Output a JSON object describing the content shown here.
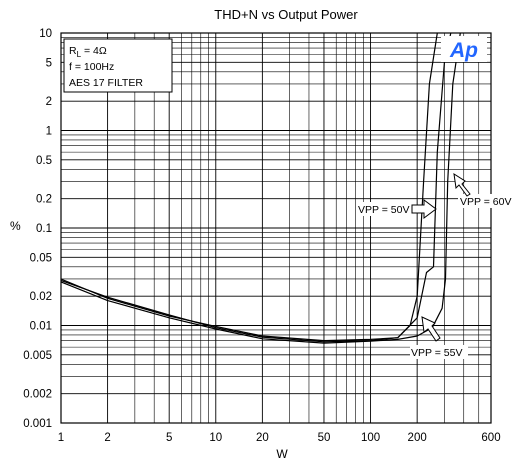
{
  "chart_data": {
    "type": "line",
    "title": "THD+N vs Output Power",
    "xlabel": "W",
    "ylabel": "%",
    "x_scale": "log",
    "y_scale": "log",
    "xlim": [
      1,
      600
    ],
    "ylim": [
      0.001,
      10
    ],
    "grid": true,
    "x_ticks": [
      1,
      2,
      5,
      10,
      20,
      50,
      100,
      200,
      600
    ],
    "x_tick_labels": [
      "1",
      "2",
      "5",
      "10",
      "20",
      "50",
      "100",
      "200",
      "600"
    ],
    "y_ticks": [
      10,
      5,
      2,
      1,
      0.5,
      0.2,
      0.1,
      0.05,
      0.02,
      0.01,
      0.005,
      0.002,
      0.001
    ],
    "y_tick_labels": [
      "10",
      "5",
      "2",
      "1",
      "0.5",
      "0.2",
      "0.1",
      "0.05",
      "0.02",
      "0.01",
      "0.005",
      "0.002",
      "0.001"
    ],
    "conditions": [
      "R",
      "L",
      " = 4Ω",
      "f  = 100Hz",
      "AES 17 FILTER"
    ],
    "logo_text": "Ap",
    "series": [
      {
        "name": "VPP = 50V",
        "points": [
          [
            1,
            0.03
          ],
          [
            2,
            0.019
          ],
          [
            5,
            0.0125
          ],
          [
            10,
            0.0098
          ],
          [
            20,
            0.0078
          ],
          [
            50,
            0.007
          ],
          [
            100,
            0.0072
          ],
          [
            150,
            0.0075
          ],
          [
            180,
            0.01
          ],
          [
            200,
            0.02
          ],
          [
            220,
            0.3
          ],
          [
            240,
            3
          ],
          [
            270,
            10
          ]
        ]
      },
      {
        "name": "VPP = 55V",
        "points": [
          [
            1,
            0.029
          ],
          [
            2,
            0.0195
          ],
          [
            5,
            0.0128
          ],
          [
            10,
            0.0095
          ],
          [
            20,
            0.0076
          ],
          [
            50,
            0.0068
          ],
          [
            100,
            0.007
          ],
          [
            150,
            0.0075
          ],
          [
            200,
            0.012
          ],
          [
            230,
            0.035
          ],
          [
            255,
            0.04
          ],
          [
            270,
            0.6
          ],
          [
            300,
            5
          ],
          [
            330,
            10
          ]
        ]
      },
      {
        "name": "VPP = 60V",
        "points": [
          [
            1,
            0.028
          ],
          [
            2,
            0.018
          ],
          [
            5,
            0.012
          ],
          [
            10,
            0.0092
          ],
          [
            20,
            0.0073
          ],
          [
            50,
            0.0066
          ],
          [
            100,
            0.0069
          ],
          [
            150,
            0.0072
          ],
          [
            200,
            0.0078
          ],
          [
            250,
            0.0095
          ],
          [
            290,
            0.015
          ],
          [
            305,
            0.03
          ],
          [
            315,
            0.3
          ],
          [
            340,
            3
          ],
          [
            380,
            10
          ]
        ]
      }
    ],
    "annotations": [
      {
        "text": "VPP = 50V",
        "arrow_to": [
          175,
          0.12
        ]
      },
      {
        "text": "VPP = 55V",
        "arrow_to": [
          250,
          0.0085
        ]
      },
      {
        "text": "VPP = 60V",
        "arrow_to": [
          310,
          0.3
        ]
      }
    ]
  }
}
